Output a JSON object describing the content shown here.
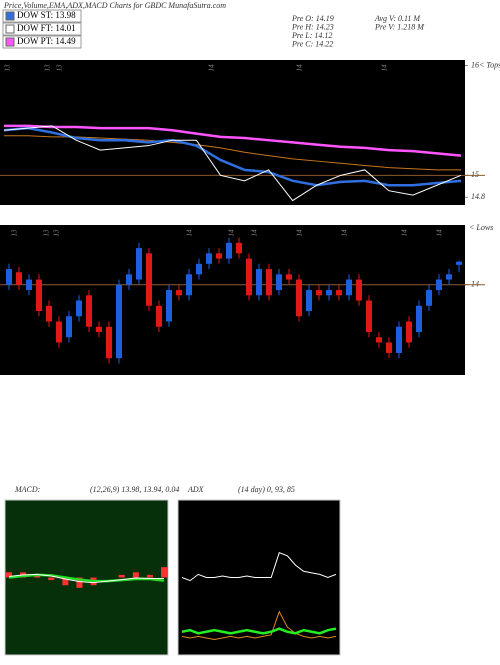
{
  "header": {
    "title": "Price,Volume,EMA,ADX,MACD Charts for GBDC MunafaSutra.com"
  },
  "legend": [
    {
      "label": "DOW ST: 13.98",
      "color": "#2f6fe0"
    },
    {
      "label": "DOW FT: 14.01",
      "color": "#ffffff"
    },
    {
      "label": "DOW PT: 14.49",
      "color": "#ff55ff"
    }
  ],
  "stats": [
    "Pre  O: 14.19",
    "Pre  H: 14.23",
    "Pre  L: 14.12",
    "Pre  C: 14.22",
    "Avg V: 0.11 M",
    "Pre  V: 1.218  M"
  ],
  "chart_data": [
    {
      "type": "line",
      "date_labels": [
        "13",
        "13",
        "13",
        "14",
        "14",
        "14"
      ],
      "ylim": [
        14.73,
        16.05
      ],
      "yticks": [
        {
          "value": 16,
          "label": "16< Tops"
        },
        15,
        14.8
      ],
      "ref_line": 15,
      "ref_color": "#8b5a2b",
      "series": [
        {
          "color": "#ff55ff",
          "width": 2.5,
          "values": [
            15.45,
            15.45,
            15.44,
            15.44,
            15.43,
            15.43,
            15.43,
            15.41,
            15.38,
            15.35,
            15.34,
            15.32,
            15.3,
            15.28,
            15.26,
            15.25,
            15.23,
            15.22,
            15.2,
            15.18
          ]
        },
        {
          "color": "#c8761e",
          "width": 1,
          "values": [
            15.36,
            15.36,
            15.35,
            15.35,
            15.34,
            15.33,
            15.32,
            15.3,
            15.28,
            15.25,
            15.21,
            15.18,
            15.15,
            15.13,
            15.11,
            15.09,
            15.07,
            15.06,
            15.05,
            15.05
          ]
        },
        {
          "color": "#2f6fe0",
          "width": 2.5,
          "values": [
            15.41,
            15.43,
            15.39,
            15.34,
            15.32,
            15.32,
            15.3,
            15.32,
            15.27,
            15.14,
            15.05,
            15.03,
            14.95,
            14.91,
            14.94,
            14.95,
            14.91,
            14.91,
            14.93,
            14.95
          ]
        },
        {
          "color": "#ffffff",
          "width": 1,
          "values": [
            15.41,
            15.43,
            15.45,
            15.32,
            15.23,
            15.25,
            15.27,
            15.32,
            15.32,
            15,
            14.95,
            15.05,
            14.77,
            14.91,
            15,
            15.05,
            14.86,
            14.82,
            14.91,
            15
          ]
        }
      ]
    },
    {
      "type": "candlestick",
      "date_labels": [
        "13",
        "13",
        "13",
        "14",
        "14",
        "14",
        "14",
        "14",
        "14",
        "14"
      ],
      "axis_note": "< Lows",
      "ylim": [
        13.14,
        14.57
      ],
      "yticks": [
        14
      ],
      "ref_line": 14,
      "ref_color": "#8b5a2b",
      "up_color": "#1e5fe0",
      "down_color": "#e01818",
      "open": [
        14,
        14.12,
        13.95,
        14.05,
        13.8,
        13.65,
        13.5,
        13.7,
        13.9,
        13.6,
        13.6,
        13.3,
        14,
        14.05,
        14.3,
        13.8,
        13.65,
        13.95,
        13.9,
        14.1,
        14.2,
        14.3,
        14.25,
        14.4,
        14.25,
        13.9,
        14.15,
        13.95,
        14.1,
        14.05,
        13.75,
        13.95,
        13.9,
        13.95,
        13.9,
        14.05,
        13.85,
        13.5,
        13.45,
        13.35,
        13.65,
        13.55,
        13.8,
        13.95,
        14.05,
        14.19
      ],
      "high": [
        14.2,
        14.17,
        14.1,
        14.1,
        13.85,
        13.7,
        13.75,
        13.9,
        13.95,
        13.65,
        13.65,
        14.05,
        14.15,
        14.4,
        14.35,
        13.85,
        14,
        14,
        14.15,
        14.25,
        14.35,
        14.35,
        14.45,
        14.45,
        14.3,
        14.2,
        14.2,
        14.15,
        14.15,
        14.1,
        14,
        14,
        14,
        14,
        14.1,
        14.1,
        13.9,
        13.55,
        13.5,
        13.65,
        13.7,
        13.85,
        14,
        14.1,
        14.15,
        14.23
      ],
      "low": [
        13.95,
        13.95,
        13.9,
        13.7,
        13.6,
        13.4,
        13.45,
        13.65,
        13.55,
        13.5,
        13.25,
        13.25,
        13.95,
        14,
        13.75,
        13.55,
        13.6,
        13.85,
        13.85,
        14.05,
        14.15,
        14.2,
        14.2,
        14.25,
        13.85,
        13.85,
        13.85,
        13.9,
        14,
        13.65,
        13.7,
        13.85,
        13.85,
        13.85,
        13.85,
        13.8,
        13.5,
        13.4,
        13.3,
        13.3,
        13.4,
        13.5,
        13.75,
        13.9,
        14,
        14.12
      ],
      "close": [
        14.15,
        14,
        14.05,
        13.75,
        13.65,
        13.45,
        13.7,
        13.85,
        13.6,
        13.55,
        13.3,
        14,
        14.1,
        14.35,
        13.8,
        13.6,
        13.95,
        13.9,
        14.1,
        14.2,
        14.3,
        14.25,
        14.4,
        14.3,
        13.9,
        14.15,
        13.9,
        14.1,
        14.05,
        13.7,
        13.95,
        13.9,
        13.95,
        13.9,
        14.05,
        13.85,
        13.55,
        13.45,
        13.35,
        13.6,
        13.45,
        13.8,
        13.95,
        14.05,
        14.1,
        14.22
      ]
    },
    {
      "type": "macd",
      "title": "MACD:",
      "subtitle": "(12,26,9) 13.98, 13.94, 0.04",
      "background": "#06300a",
      "ylim": [
        12.5,
        15.5
      ],
      "hist_ylim": [
        -0.3,
        0.3
      ],
      "hist_color": "#ff3030",
      "series": [
        {
          "color": "#22dd22",
          "width": 2.5,
          "values": [
            14,
            14.03,
            14.05,
            14.04,
            14,
            13.96,
            13.93,
            13.93,
            13.95,
            13.97,
            13.97,
            13.94
          ]
        },
        {
          "color": "#ffffff",
          "width": 1,
          "values": [
            14.02,
            14.05,
            14.06,
            14.03,
            13.97,
            13.92,
            13.9,
            13.93,
            13.96,
            13.99,
            13.98,
            13.98
          ]
        }
      ],
      "histogram": [
        0.02,
        0.02,
        0.01,
        -0.01,
        -0.03,
        -0.04,
        -0.03,
        0,
        0.01,
        0.02,
        0.01,
        0.04
      ]
    },
    {
      "type": "adx",
      "title": "ADX",
      "subtitle": "(14  day) 0, 93, 85",
      "background": "#000000",
      "ylim": [
        0,
        100
      ],
      "series": [
        {
          "color": "#ffffff",
          "width": 1,
          "values": [
            50,
            48,
            52,
            50,
            50,
            51,
            50,
            50,
            51,
            50,
            50,
            50,
            66,
            64,
            58,
            54,
            53,
            52,
            50,
            52
          ]
        },
        {
          "color": "#e08a20",
          "width": 1,
          "values": [
            12,
            11,
            12,
            11,
            10,
            11,
            12,
            11,
            12,
            11,
            12,
            13,
            28,
            18,
            14,
            12,
            11,
            12,
            11,
            12
          ]
        },
        {
          "color": "#22ee22",
          "width": 2.5,
          "values": [
            15,
            16,
            14,
            15,
            16,
            15,
            14,
            15,
            16,
            15,
            14,
            15,
            17,
            15,
            14,
            16,
            15,
            14,
            16,
            17
          ]
        }
      ]
    }
  ]
}
